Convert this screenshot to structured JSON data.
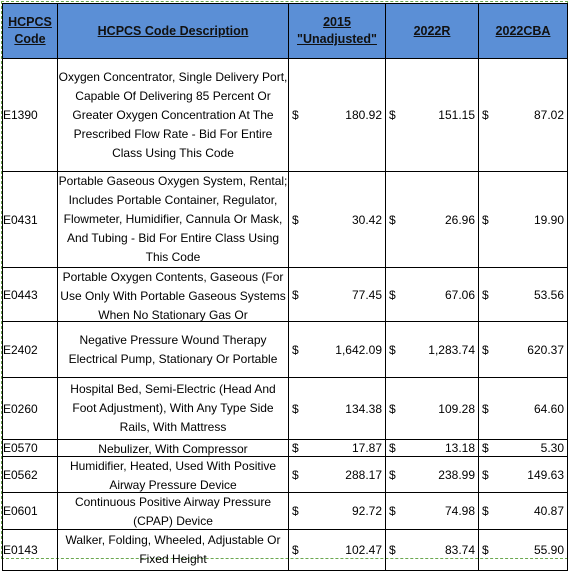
{
  "columns": [
    "HCPCS Code",
    "HCPCS Code Description",
    "2015 \"Unadjusted\"",
    "2022R",
    "2022CBA"
  ],
  "currency": "$",
  "rows": [
    {
      "code": "E1390",
      "desc": "Oxygen Concentrator, Single Delivery Port, Capable Of Delivering 85 Percent Or Greater Oxygen Concentration At The Prescribed Flow Rate - Bid For Entire Class Using This Code",
      "v2015": "180.92",
      "v2022r": "151.15",
      "v2022cba": "87.02"
    },
    {
      "code": "E0431",
      "desc": "Portable Gaseous Oxygen System, Rental; Includes Portable Container, Regulator, Flowmeter, Humidifier, Cannula Or Mask, And Tubing - Bid For Entire Class Using This Code",
      "v2015": "30.42",
      "v2022r": "26.96",
      "v2022cba": "19.90"
    },
    {
      "code": "E0443",
      "desc": "Portable Oxygen Contents, Gaseous (For Use Only With Portable Gaseous Systems When No Stationary Gas Or",
      "v2015": "77.45",
      "v2022r": "67.06",
      "v2022cba": "53.56"
    },
    {
      "code": "E2402",
      "desc": "Negative Pressure Wound Therapy Electrical Pump, Stationary Or Portable",
      "v2015": "1,642.09",
      "v2022r": "1,283.74",
      "v2022cba": "620.37"
    },
    {
      "code": "E0260",
      "desc": "Hospital Bed, Semi-Electric (Head And Foot Adjustment), With Any Type Side Rails, With Mattress",
      "v2015": "134.38",
      "v2022r": "109.28",
      "v2022cba": "64.60"
    },
    {
      "code": "E0570",
      "desc": "Nebulizer, With Compressor",
      "v2015": "17.87",
      "v2022r": "13.18",
      "v2022cba": "5.30"
    },
    {
      "code": "E0562",
      "desc": "Humidifier, Heated, Used With Positive Airway Pressure Device",
      "v2015": "288.17",
      "v2022r": "238.99",
      "v2022cba": "149.63"
    },
    {
      "code": "E0601",
      "desc": "Continuous Positive Airway Pressure (CPAP) Device",
      "v2015": "92.72",
      "v2022r": "74.98",
      "v2022cba": "40.87"
    },
    {
      "code": "E0143",
      "desc": "Walker, Folding, Wheeled, Adjustable Or Fixed Height",
      "v2015": "102.47",
      "v2022r": "83.74",
      "v2022cba": "55.90"
    }
  ]
}
